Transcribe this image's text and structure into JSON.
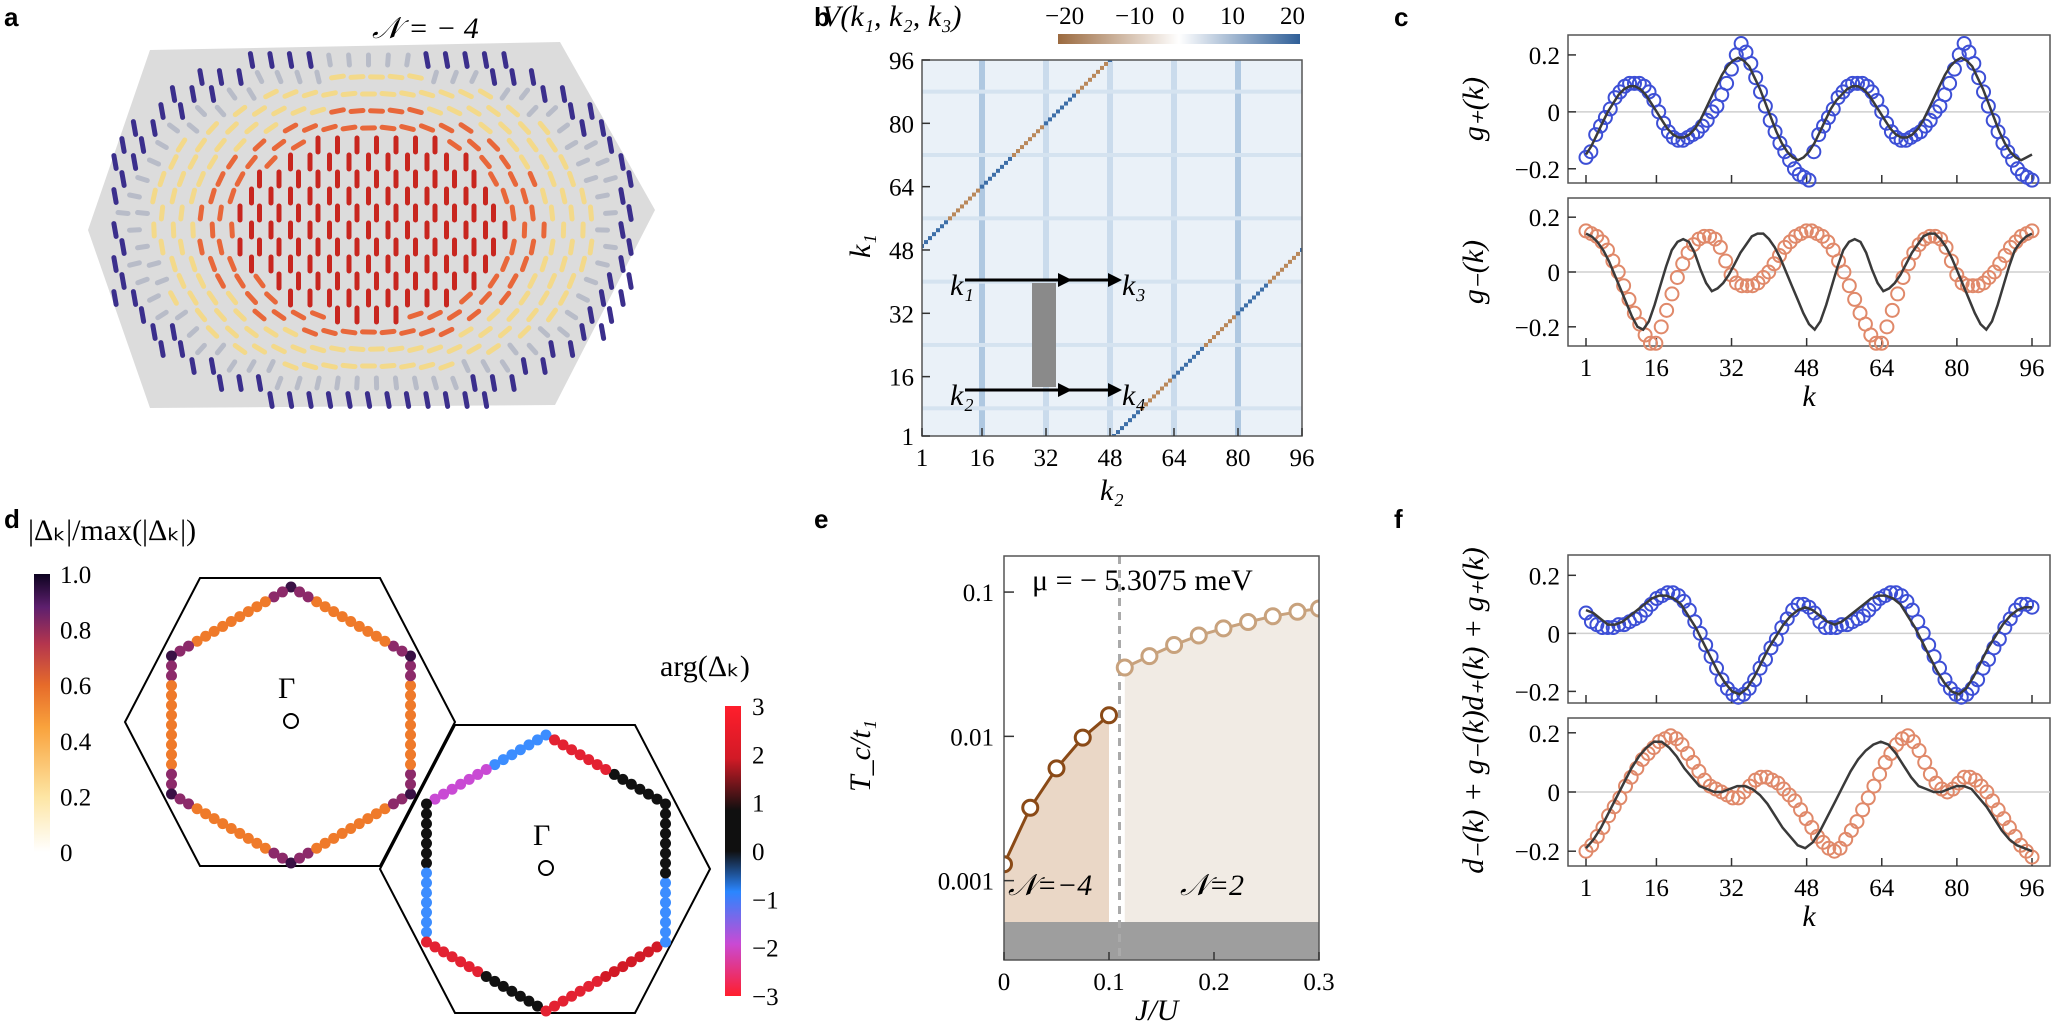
{
  "panels": {
    "a": {
      "label": "a",
      "title": "𝒩 = − 4"
    },
    "b": {
      "label": "b"
    },
    "c": {
      "label": "c"
    },
    "d": {
      "label": "d"
    },
    "e": {
      "label": "e"
    },
    "f": {
      "label": "f"
    }
  },
  "colors": {
    "blue": "#3d4fd6",
    "salmon": "#e0896a",
    "dark": "#3a3a3a",
    "brown": "#8a4a17",
    "tan": "#c8a27d"
  },
  "chart_data": [
    {
      "id": "b",
      "type": "heatmap",
      "title": "V(k₁, k₂, k₃)",
      "colorbar_ticks": [
        "−20",
        "−10",
        "0",
        "10",
        "20"
      ],
      "x_ticks": [
        "1",
        "16",
        "32",
        "48",
        "64",
        "80",
        "96"
      ],
      "y_ticks": [
        "1",
        "16",
        "32",
        "48",
        "64",
        "80",
        "96"
      ],
      "xlabel": "k₂",
      "ylabel": "k₁",
      "inset_labels": [
        "k₁",
        "k₃",
        "k₂",
        "k₄"
      ]
    },
    {
      "id": "c_top",
      "type": "line",
      "ylabel": "g₊(k)",
      "xlabel": "",
      "x_ticks": [
        "1",
        "16",
        "32",
        "48",
        "64",
        "80",
        "96"
      ],
      "y_ticks": [
        "0.2",
        "0",
        "−0.2"
      ],
      "ylim": [
        -0.25,
        0.27
      ],
      "series": [
        {
          "name": "data",
          "style": "circles",
          "color": "blue",
          "values": [
            -0.16,
            -0.14,
            -0.08,
            -0.05,
            -0.02,
            0.01,
            0.05,
            0.07,
            0.09,
            0.1,
            0.1,
            0.1,
            0.09,
            0.07,
            0.04,
            0.0,
            -0.04,
            -0.07,
            -0.09,
            -0.1,
            -0.1,
            -0.09,
            -0.08,
            -0.07,
            -0.05,
            -0.03,
            0.0,
            0.02,
            0.06,
            0.1,
            0.15,
            0.2,
            0.24,
            0.21,
            0.17,
            0.12,
            0.07,
            0.02,
            -0.03,
            -0.07,
            -0.11,
            -0.14,
            -0.17,
            -0.2,
            -0.22,
            -0.23,
            -0.24,
            -0.14,
            -0.08,
            -0.05,
            -0.02,
            0.01,
            0.05,
            0.07,
            0.09,
            0.1,
            0.1,
            0.1,
            0.09,
            0.07,
            0.04,
            0.0,
            -0.04,
            -0.07,
            -0.09,
            -0.1,
            -0.1,
            -0.09,
            -0.08,
            -0.07,
            -0.05,
            -0.03,
            0.0,
            0.02,
            0.06,
            0.1,
            0.15,
            0.2,
            0.24,
            0.21,
            0.17,
            0.12,
            0.07,
            0.02,
            -0.03,
            -0.07,
            -0.11,
            -0.14,
            -0.17,
            -0.2,
            -0.22,
            -0.23,
            -0.24
          ]
        },
        {
          "name": "fit",
          "style": "line",
          "color": "dark",
          "values": [
            -0.15,
            -0.12,
            -0.08,
            -0.04,
            0.0,
            0.03,
            0.06,
            0.08,
            0.09,
            0.09,
            0.08,
            0.06,
            0.03,
            0.0,
            -0.03,
            -0.06,
            -0.08,
            -0.09,
            -0.09,
            -0.08,
            -0.06,
            -0.03,
            0.01,
            0.05,
            0.09,
            0.13,
            0.16,
            0.18,
            0.19,
            0.18,
            0.16,
            0.12,
            0.08,
            0.03,
            -0.02,
            -0.07,
            -0.11,
            -0.14,
            -0.16,
            -0.17,
            -0.16,
            -0.14,
            -0.11,
            -0.07,
            -0.03,
            0.01,
            0.04,
            0.06,
            0.08,
            0.09,
            0.09,
            0.08,
            0.06,
            0.03,
            0.0,
            -0.03,
            -0.06,
            -0.08,
            -0.09,
            -0.09,
            -0.08,
            -0.06,
            -0.03,
            0.01,
            0.05,
            0.09,
            0.13,
            0.16,
            0.18,
            0.19,
            0.18,
            0.16,
            0.12,
            0.08,
            0.03,
            -0.02,
            -0.07,
            -0.11,
            -0.14,
            -0.16,
            -0.17,
            -0.16,
            -0.15
          ]
        }
      ]
    },
    {
      "id": "c_bottom",
      "type": "line",
      "ylabel": "g₋(k)",
      "xlabel": "k",
      "x_ticks": [
        "1",
        "16",
        "32",
        "48",
        "64",
        "80",
        "96"
      ],
      "y_ticks": [
        "0.2",
        "0",
        "−0.2"
      ],
      "ylim": [
        -0.27,
        0.27
      ],
      "series": [
        {
          "name": "data",
          "style": "circles",
          "color": "salmon",
          "values": [
            0.15,
            0.14,
            0.13,
            0.11,
            0.08,
            0.04,
            0.0,
            -0.05,
            -0.1,
            -0.15,
            -0.19,
            -0.23,
            -0.26,
            -0.26,
            -0.2,
            -0.14,
            -0.08,
            -0.02,
            0.03,
            0.07,
            0.1,
            0.12,
            0.13,
            0.13,
            0.12,
            0.09,
            0.04,
            -0.01,
            -0.04,
            -0.05,
            -0.05,
            -0.05,
            -0.04,
            -0.02,
            0.0,
            0.03,
            0.06,
            0.09,
            0.11,
            0.13,
            0.14,
            0.15,
            0.15,
            0.14,
            0.13,
            0.11,
            0.08,
            0.04,
            0.0,
            -0.05,
            -0.1,
            -0.15,
            -0.19,
            -0.23,
            -0.26,
            -0.26,
            -0.2,
            -0.14,
            -0.08,
            -0.02,
            0.03,
            0.07,
            0.1,
            0.12,
            0.13,
            0.13,
            0.12,
            0.09,
            0.04,
            -0.01,
            -0.04,
            -0.05,
            -0.05,
            -0.05,
            -0.04,
            -0.02,
            0.0,
            0.03,
            0.06,
            0.09,
            0.11,
            0.13,
            0.14,
            0.15
          ]
        },
        {
          "name": "fit",
          "style": "line",
          "color": "dark",
          "values": [
            0.14,
            0.13,
            0.11,
            0.08,
            0.04,
            -0.01,
            -0.06,
            -0.11,
            -0.16,
            -0.2,
            -0.21,
            -0.18,
            -0.12,
            -0.05,
            0.02,
            0.08,
            0.11,
            0.12,
            0.11,
            0.07,
            0.01,
            -0.04,
            -0.07,
            -0.06,
            -0.04,
            -0.01,
            0.03,
            0.07,
            0.1,
            0.13,
            0.14,
            0.14,
            0.12,
            0.09,
            0.05,
            0.0,
            -0.05,
            -0.1,
            -0.15,
            -0.19,
            -0.21,
            -0.18,
            -0.12,
            -0.05,
            0.02,
            0.08,
            0.11,
            0.12,
            0.11,
            0.07,
            0.01,
            -0.04,
            -0.07,
            -0.06,
            -0.04,
            -0.01,
            0.03,
            0.07,
            0.1,
            0.13,
            0.14,
            0.14,
            0.12,
            0.09,
            0.05,
            0.0,
            -0.05,
            -0.1,
            -0.15,
            -0.19,
            -0.21,
            -0.18,
            -0.12,
            -0.05,
            0.02,
            0.08,
            0.11,
            0.13,
            0.14
          ]
        }
      ]
    },
    {
      "id": "d",
      "type": "scatter",
      "colorbar1_title": "|Δₖ|/max(|Δₖ|)",
      "colorbar1_ticks": [
        "1.0",
        "0.8",
        "0.6",
        "0.4",
        "0.2",
        "0"
      ],
      "colorbar2_title": "arg(Δₖ)",
      "colorbar2_ticks": [
        "3",
        "2",
        "1",
        "0",
        "−1",
        "−2",
        "−3"
      ],
      "point_label": "Γ"
    },
    {
      "id": "e",
      "type": "line",
      "title": "μ = − 5.3075 meV",
      "xlabel": "J/U",
      "ylabel": "T_c/t₁",
      "x_ticks": [
        "0",
        "0.1",
        "0.2",
        "0.3"
      ],
      "y_ticks": [
        "0.1",
        "0.01",
        "0.001"
      ],
      "xlim": [
        0,
        0.3
      ],
      "ylog_range": [
        -3.55,
        -0.75
      ],
      "region_labels": [
        "𝒩=−4",
        "𝒩=2"
      ],
      "transition_x": 0.11,
      "series": [
        {
          "name": "𝒩=−4",
          "color": "brown",
          "x": [
            0,
            0.025,
            0.05,
            0.075,
            0.1
          ],
          "y": [
            0.0013,
            0.0032,
            0.006,
            0.0098,
            0.014
          ]
        },
        {
          "name": "𝒩=2",
          "color": "tan",
          "x": [
            0.115,
            0.1385,
            0.162,
            0.1855,
            0.209,
            0.2325,
            0.256,
            0.2795,
            0.3
          ],
          "y": [
            0.03,
            0.036,
            0.043,
            0.05,
            0.056,
            0.062,
            0.068,
            0.073,
            0.077
          ]
        }
      ]
    },
    {
      "id": "f_top",
      "type": "line",
      "ylabel": "d₊(k) + g₊(k)",
      "xlabel": "",
      "x_ticks": [
        "1",
        "16",
        "32",
        "48",
        "64",
        "80",
        "96"
      ],
      "y_ticks": [
        "0.2",
        "0",
        "−0.2"
      ],
      "ylim": [
        -0.24,
        0.27
      ],
      "series": [
        {
          "name": "data",
          "style": "circles",
          "color": "blue",
          "values": [
            0.07,
            0.04,
            0.03,
            0.02,
            0.02,
            0.02,
            0.03,
            0.03,
            0.04,
            0.05,
            0.06,
            0.08,
            0.1,
            0.12,
            0.13,
            0.14,
            0.14,
            0.13,
            0.11,
            0.08,
            0.04,
            0.0,
            -0.04,
            -0.08,
            -0.12,
            -0.16,
            -0.19,
            -0.21,
            -0.22,
            -0.21,
            -0.19,
            -0.16,
            -0.12,
            -0.09,
            -0.05,
            -0.02,
            0.02,
            0.05,
            0.08,
            0.1,
            0.1,
            0.09,
            0.07,
            0.04,
            0.02,
            0.02,
            0.02,
            0.03,
            0.03,
            0.04,
            0.05,
            0.06,
            0.08,
            0.1,
            0.12,
            0.13,
            0.14,
            0.14,
            0.13,
            0.11,
            0.08,
            0.04,
            0.0,
            -0.04,
            -0.08,
            -0.12,
            -0.16,
            -0.19,
            -0.21,
            -0.22,
            -0.21,
            -0.19,
            -0.16,
            -0.12,
            -0.09,
            -0.05,
            -0.02,
            0.02,
            0.05,
            0.08,
            0.1,
            0.1,
            0.09
          ]
        },
        {
          "name": "fit",
          "style": "line",
          "color": "dark",
          "values": [
            0.08,
            0.07,
            0.05,
            0.03,
            0.03,
            0.04,
            0.06,
            0.08,
            0.1,
            0.12,
            0.13,
            0.13,
            0.12,
            0.1,
            0.06,
            0.02,
            -0.03,
            -0.08,
            -0.13,
            -0.17,
            -0.2,
            -0.21,
            -0.19,
            -0.15,
            -0.1,
            -0.05,
            -0.01,
            0.03,
            0.06,
            0.08,
            0.09,
            0.08,
            0.06,
            0.04,
            0.03,
            0.04,
            0.06,
            0.08,
            0.1,
            0.12,
            0.13,
            0.13,
            0.12,
            0.1,
            0.06,
            0.02,
            -0.03,
            -0.08,
            -0.13,
            -0.17,
            -0.2,
            -0.21,
            -0.19,
            -0.15,
            -0.1,
            -0.05,
            -0.01,
            0.03,
            0.06,
            0.08,
            0.09,
            0.09
          ]
        }
      ]
    },
    {
      "id": "f_bottom",
      "type": "line",
      "ylabel": "d₋(k) + g₋(k)",
      "xlabel": "k",
      "x_ticks": [
        "1",
        "16",
        "32",
        "48",
        "64",
        "80",
        "96"
      ],
      "y_ticks": [
        "0.2",
        "0",
        "−0.2"
      ],
      "ylim": [
        -0.25,
        0.25
      ],
      "series": [
        {
          "name": "data",
          "style": "circles",
          "color": "salmon",
          "values": [
            -0.2,
            -0.18,
            -0.15,
            -0.12,
            -0.08,
            -0.05,
            -0.02,
            0.02,
            0.05,
            0.08,
            0.11,
            0.13,
            0.15,
            0.17,
            0.18,
            0.19,
            0.18,
            0.16,
            0.13,
            0.1,
            0.07,
            0.04,
            0.02,
            0.01,
            0.0,
            -0.01,
            -0.02,
            -0.02,
            0.0,
            0.02,
            0.04,
            0.05,
            0.05,
            0.04,
            0.03,
            0.01,
            -0.01,
            -0.03,
            -0.06,
            -0.09,
            -0.12,
            -0.15,
            -0.17,
            -0.19,
            -0.2,
            -0.19,
            -0.16,
            -0.13,
            -0.1,
            -0.06,
            -0.02,
            0.02,
            0.06,
            0.1,
            0.13,
            0.16,
            0.18,
            0.19,
            0.17,
            0.14,
            0.1,
            0.06,
            0.03,
            0.01,
            0.0,
            0.01,
            0.03,
            0.05,
            0.05,
            0.04,
            0.02,
            0.0,
            -0.03,
            -0.06,
            -0.09,
            -0.12,
            -0.15,
            -0.18,
            -0.2,
            -0.22
          ]
        },
        {
          "name": "fit",
          "style": "line",
          "color": "dark",
          "values": [
            -0.19,
            -0.16,
            -0.12,
            -0.07,
            -0.02,
            0.03,
            0.08,
            0.12,
            0.15,
            0.17,
            0.17,
            0.15,
            0.12,
            0.08,
            0.05,
            0.02,
            0.01,
            0.0,
            0.0,
            0.01,
            0.02,
            0.02,
            0.01,
            -0.01,
            -0.04,
            -0.08,
            -0.12,
            -0.15,
            -0.18,
            -0.19,
            -0.17,
            -0.13,
            -0.08,
            -0.03,
            0.02,
            0.07,
            0.11,
            0.14,
            0.16,
            0.17,
            0.16,
            0.13,
            0.09,
            0.05,
            0.02,
            0.01,
            0.0,
            0.0,
            0.01,
            0.02,
            0.02,
            0.01,
            -0.02,
            -0.05,
            -0.09,
            -0.13,
            -0.16,
            -0.18,
            -0.19,
            -0.2
          ]
        }
      ]
    }
  ]
}
